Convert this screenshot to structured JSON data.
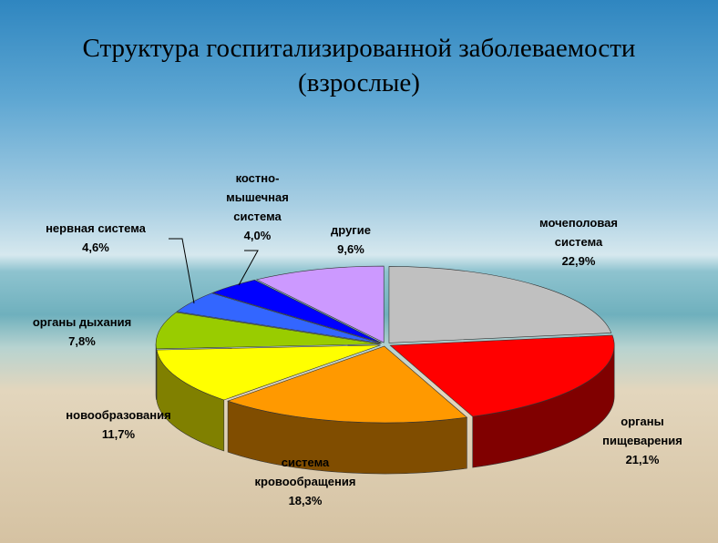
{
  "chart_data": {
    "type": "pie3d",
    "title": "Структура госпитализированной заболеваемости (взрослые)",
    "categories": [
      "мочеполовая система",
      "органы пищеварения",
      "система кровообращения",
      "новообразования",
      "органы дыхания",
      "нервная система",
      "костно-мышечная система",
      "другие"
    ],
    "values": [
      22.9,
      21.1,
      18.3,
      11.7,
      7.8,
      4.6,
      4.0,
      9.6
    ],
    "value_labels": [
      "22,9%",
      "21,1%",
      "18,3%",
      "11,7%",
      "7,8%",
      "4,6%",
      "4,0%",
      "9,6%"
    ],
    "colors": [
      "#c0c0c0",
      "#ff0000",
      "#ff9900",
      "#ffff00",
      "#99cc00",
      "#3366ff",
      "#0000ff",
      "#cc99ff"
    ]
  }
}
